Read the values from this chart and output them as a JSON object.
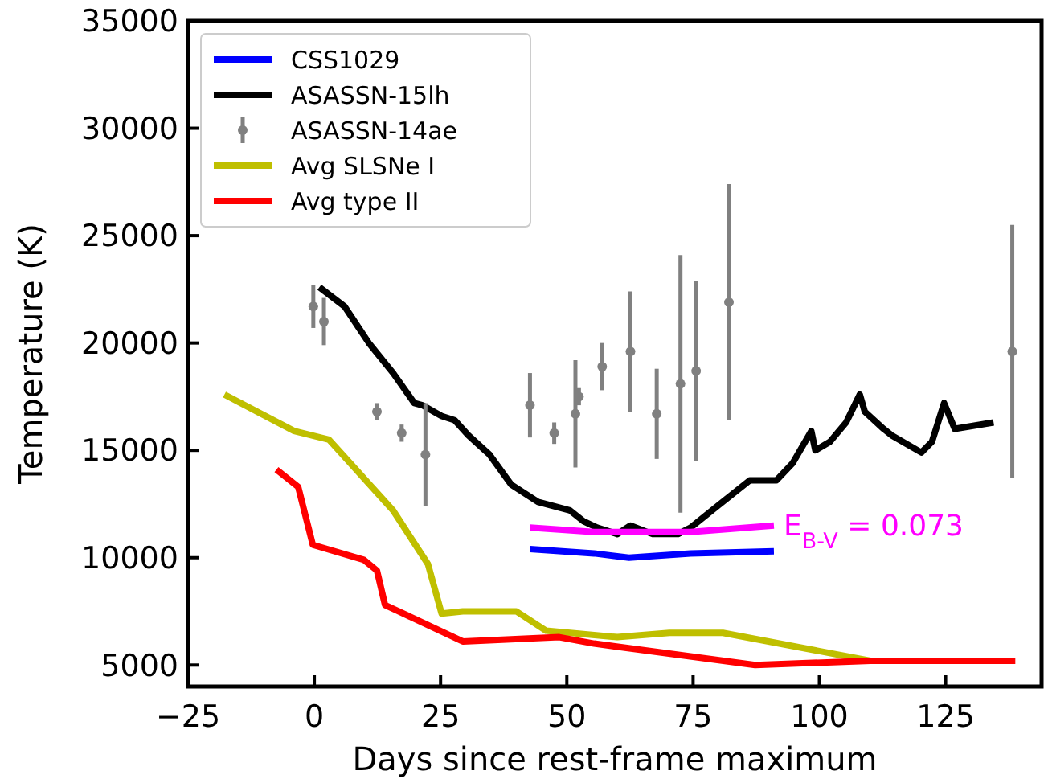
{
  "chart_data": {
    "type": "line",
    "xlabel": "Days since rest-frame maximum",
    "ylabel": "Temperature (K)",
    "xlim": [
      -25,
      144
    ],
    "ylim": [
      4000,
      35000
    ],
    "xticks": [
      {
        "value": -25,
        "label": "−25"
      },
      0,
      25,
      50,
      75,
      100,
      125
    ],
    "yticks": [
      5000,
      10000,
      15000,
      20000,
      25000,
      30000,
      35000
    ],
    "legend": "top left",
    "grid": false,
    "annotations": [
      {
        "text": "E$_{B-V}$ = 0.073",
        "x": 91,
        "y": 11500
      }
    ],
    "series": [
      {
        "name": "CSS1029",
        "color": "#0000ff",
        "x": [
          42.7,
          55.4,
          62.3,
          74.5,
          91
        ],
        "values": [
          10400,
          10200,
          10000,
          10200,
          10300
        ]
      },
      {
        "name": "ASASSN-15lh",
        "color": "#000000",
        "x": [
          1,
          6,
          10.8,
          15.6,
          19.8,
          21.4,
          25.2,
          27.8,
          30.5,
          34.7,
          39,
          44.3,
          50.6,
          53.3,
          56,
          60,
          62.6,
          67,
          72,
          74.5,
          79.8,
          86.2,
          91.5,
          94.7,
          98.4,
          99.2,
          102.1,
          105.3,
          108,
          109,
          112.7,
          114.3,
          120.2,
          122.3,
          124.7,
          126.8,
          134.5
        ],
        "values": [
          22600,
          21700,
          20000,
          18600,
          17200,
          17100,
          16600,
          16400,
          15700,
          14800,
          13400,
          12600,
          12200,
          11700,
          11400,
          11100,
          11500,
          11100,
          11100,
          11400,
          12400,
          13600,
          13600,
          14400,
          15900,
          15000,
          15400,
          16300,
          17600,
          16800,
          16000,
          15700,
          14900,
          15400,
          17200,
          16000,
          16300
        ]
      },
      {
        "name": "ASASSN-14ae",
        "type": "scatter",
        "color": "#808080",
        "marker": "circle",
        "x": [
          -0.2,
          1.9,
          12.4,
          17.3,
          22,
          42.7,
          47.5,
          51.7,
          52.4,
          57,
          62.6,
          67.8,
          72.5,
          75.6,
          82.1,
          138.2
        ],
        "values": [
          21700,
          21000,
          16800,
          15800,
          14800,
          17100,
          15800,
          16700,
          17500,
          18900,
          19600,
          16700,
          18100,
          18700,
          21900,
          19600
        ],
        "errors": [
          1000,
          1100,
          400,
          400,
          2400,
          1500,
          500,
          2500,
          400,
          1100,
          2800,
          2100,
          6000,
          4200,
          5500,
          5900
        ]
      },
      {
        "name": "Avg SLSNe I",
        "color": "#bfbf00",
        "x": [
          -17.8,
          -4,
          2.9,
          15.6,
          22.5,
          25.2,
          29.4,
          40,
          45.9,
          60,
          70.3,
          80.9,
          110.1
        ],
        "values": [
          17600,
          15900,
          15500,
          12200,
          9700,
          7400,
          7500,
          7500,
          6600,
          6300,
          6500,
          6500,
          5200
        ]
      },
      {
        "name": "Avg type II",
        "color": "#ff0000",
        "x": [
          -7.5,
          -3.2,
          -0.3,
          9.8,
          12.4,
          14,
          29.4,
          48.5,
          55.4,
          87.3,
          110.1,
          138.8
        ],
        "values": [
          14100,
          13300,
          10600,
          9900,
          9400,
          7800,
          6100,
          6300,
          6000,
          5000,
          5200,
          5200
        ]
      },
      {
        "color": "#ff00ff",
        "x": [
          42.7,
          55.4,
          63.5,
          74.5,
          91
        ],
        "values": [
          11400,
          11200,
          11200,
          11200,
          11500
        ]
      }
    ]
  }
}
